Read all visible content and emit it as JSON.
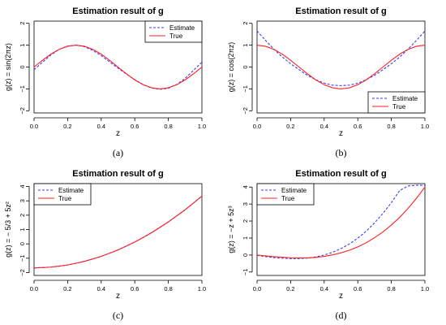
{
  "colors": {
    "estimate": "#3a3aff",
    "true": "#ff2020",
    "axis": "#000000"
  },
  "chart_data": [
    {
      "id": "a",
      "type": "line",
      "title": "Estimation result of g",
      "xlabel": "z",
      "ylabel": "g(z) = sin(2πz)",
      "caption": "(a)",
      "xlim": [
        0,
        1
      ],
      "ylim": [
        -2.1,
        2.1
      ],
      "xticks": [
        0.0,
        0.2,
        0.4,
        0.6,
        0.8,
        1.0
      ],
      "xtick_labels": [
        "0.0",
        "0.2",
        "0.4",
        "0.6",
        "0.8",
        "1.0"
      ],
      "yticks": [
        -2,
        -1,
        0,
        1,
        2
      ],
      "ytick_labels": [
        "−2",
        "−1",
        "0",
        "1",
        "2"
      ],
      "legend": {
        "placement": "top-right",
        "entries": [
          "Estimate",
          "True"
        ]
      },
      "x": [
        0.0,
        0.05,
        0.1,
        0.15,
        0.2,
        0.25,
        0.3,
        0.35,
        0.4,
        0.45,
        0.5,
        0.55,
        0.6,
        0.65,
        0.7,
        0.75,
        0.8,
        0.85,
        0.9,
        0.95,
        1.0
      ],
      "series": [
        {
          "name": "Estimate",
          "style": "dashed",
          "values": [
            -0.12,
            0.22,
            0.55,
            0.81,
            0.96,
            1.0,
            0.93,
            0.76,
            0.52,
            0.24,
            -0.05,
            -0.32,
            -0.58,
            -0.8,
            -0.96,
            -1.02,
            -0.97,
            -0.8,
            -0.52,
            -0.15,
            0.22
          ]
        },
        {
          "name": "True",
          "style": "solid",
          "values": [
            0.0,
            0.31,
            0.59,
            0.81,
            0.95,
            1.0,
            0.95,
            0.81,
            0.59,
            0.31,
            0.0,
            -0.31,
            -0.59,
            -0.81,
            -0.95,
            -1.0,
            -0.95,
            -0.81,
            -0.59,
            -0.31,
            0.0
          ]
        }
      ]
    },
    {
      "id": "b",
      "type": "line",
      "title": "Estimation result of g",
      "xlabel": "z",
      "ylabel": "g(z) = cos(2πz)",
      "caption": "(b)",
      "xlim": [
        0,
        1
      ],
      "ylim": [
        -2.1,
        2.1
      ],
      "xticks": [
        0.0,
        0.2,
        0.4,
        0.6,
        0.8,
        1.0
      ],
      "xtick_labels": [
        "0.0",
        "0.2",
        "0.4",
        "0.6",
        "0.8",
        "1.0"
      ],
      "yticks": [
        -2,
        -1,
        0,
        1,
        2
      ],
      "ytick_labels": [
        "−2",
        "−1",
        "0",
        "1",
        "2"
      ],
      "legend": {
        "placement": "bottom-right",
        "entries": [
          "Estimate",
          "True"
        ]
      },
      "x": [
        0.0,
        0.05,
        0.1,
        0.15,
        0.2,
        0.25,
        0.3,
        0.35,
        0.4,
        0.45,
        0.5,
        0.55,
        0.6,
        0.65,
        0.7,
        0.75,
        0.8,
        0.85,
        0.9,
        0.95,
        1.0
      ],
      "series": [
        {
          "name": "Estimate",
          "style": "dashed",
          "values": [
            1.65,
            1.22,
            0.82,
            0.46,
            0.15,
            -0.12,
            -0.38,
            -0.58,
            -0.74,
            -0.83,
            -0.85,
            -0.83,
            -0.74,
            -0.58,
            -0.38,
            -0.12,
            0.15,
            0.46,
            0.82,
            1.22,
            1.65
          ]
        },
        {
          "name": "True",
          "style": "solid",
          "values": [
            1.0,
            0.95,
            0.81,
            0.59,
            0.31,
            0.0,
            -0.31,
            -0.59,
            -0.81,
            -0.95,
            -1.0,
            -0.95,
            -0.81,
            -0.59,
            -0.31,
            0.0,
            0.31,
            0.59,
            0.81,
            0.95,
            1.0
          ]
        }
      ]
    },
    {
      "id": "c",
      "type": "line",
      "title": "Estimation result of g",
      "xlabel": "z",
      "ylabel": "g(z) = − 5/3 + 5z²",
      "caption": "(c)",
      "xlim": [
        0,
        1
      ],
      "ylim": [
        -2.2,
        4.2
      ],
      "xticks": [
        0.0,
        0.2,
        0.4,
        0.6,
        0.8,
        1.0
      ],
      "xtick_labels": [
        "0.0",
        "0.2",
        "0.4",
        "0.6",
        "0.8",
        "1.0"
      ],
      "yticks": [
        -2,
        -1,
        0,
        1,
        2,
        3,
        4
      ],
      "ytick_labels": [
        "−2",
        "−1",
        "0",
        "1",
        "2",
        "3",
        "4"
      ],
      "legend": {
        "placement": "top-left",
        "entries": [
          "Estimate",
          "True"
        ]
      },
      "x": [
        0.0,
        0.05,
        0.1,
        0.15,
        0.2,
        0.25,
        0.3,
        0.35,
        0.4,
        0.45,
        0.5,
        0.55,
        0.6,
        0.65,
        0.7,
        0.75,
        0.8,
        0.85,
        0.9,
        0.95,
        1.0
      ],
      "series": [
        {
          "name": "Estimate",
          "style": "dashed",
          "values": [
            -1.67,
            -1.65,
            -1.62,
            -1.55,
            -1.47,
            -1.35,
            -1.22,
            -1.05,
            -0.87,
            -0.65,
            -0.42,
            -0.16,
            0.13,
            0.45,
            0.78,
            1.15,
            1.53,
            1.95,
            2.38,
            2.85,
            3.33
          ]
        },
        {
          "name": "True",
          "style": "solid",
          "values": [
            -1.67,
            -1.65,
            -1.62,
            -1.55,
            -1.47,
            -1.35,
            -1.22,
            -1.05,
            -0.87,
            -0.65,
            -0.42,
            -0.15,
            0.13,
            0.45,
            0.78,
            1.15,
            1.53,
            1.95,
            2.38,
            2.85,
            3.33
          ]
        }
      ]
    },
    {
      "id": "d",
      "type": "line",
      "title": "Estimation result of g",
      "xlabel": "z",
      "ylabel": "g(z) = −z + 5z³",
      "caption": "(d)",
      "xlim": [
        0,
        1
      ],
      "ylim": [
        -1.2,
        4.2
      ],
      "xticks": [
        0.0,
        0.2,
        0.4,
        0.6,
        0.8,
        1.0
      ],
      "xtick_labels": [
        "0.0",
        "0.2",
        "0.4",
        "0.6",
        "0.8",
        "1.0"
      ],
      "yticks": [
        -1,
        0,
        1,
        2,
        3,
        4
      ],
      "ytick_labels": [
        "−1",
        "0",
        "1",
        "2",
        "3",
        "4"
      ],
      "legend": {
        "placement": "top-left",
        "entries": [
          "Estimate",
          "True"
        ]
      },
      "x": [
        0.0,
        0.05,
        0.1,
        0.15,
        0.2,
        0.25,
        0.3,
        0.35,
        0.4,
        0.45,
        0.5,
        0.55,
        0.6,
        0.65,
        0.7,
        0.75,
        0.8,
        0.85,
        0.9,
        0.95,
        1.0
      ],
      "series": [
        {
          "name": "Estimate",
          "style": "dashed",
          "values": [
            -0.02,
            -0.09,
            -0.15,
            -0.19,
            -0.21,
            -0.21,
            -0.18,
            -0.11,
            0.0,
            0.16,
            0.38,
            0.65,
            0.99,
            1.4,
            1.89,
            2.45,
            3.08,
            3.8,
            4.06,
            4.1,
            4.1
          ]
        },
        {
          "name": "True",
          "style": "solid",
          "values": [
            0.0,
            -0.05,
            -0.1,
            -0.13,
            -0.16,
            -0.17,
            -0.17,
            -0.14,
            -0.08,
            0.01,
            0.13,
            0.28,
            0.48,
            0.72,
            1.02,
            1.36,
            1.76,
            2.22,
            2.75,
            3.34,
            4.0
          ]
        }
      ]
    }
  ]
}
